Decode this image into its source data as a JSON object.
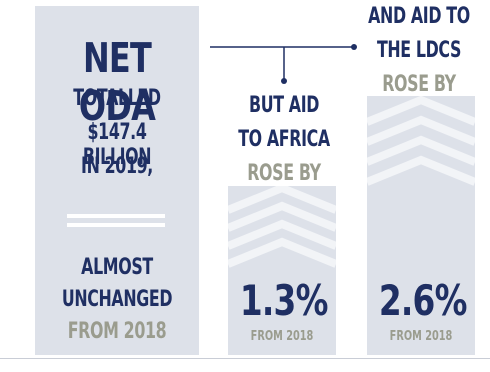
{
  "left_panel": {
    "title": "NET ODA",
    "line_1": "TOTALLED",
    "line_2": "$147.4 BILLION",
    "line_3": "IN 2019,",
    "line_4": "ALMOST",
    "line_5": "UNCHANGED",
    "line_6": "FROM 2018"
  },
  "africa": {
    "line_1": "BUT AID",
    "line_2": "TO AFRICA",
    "line_3": "ROSE BY",
    "value": "1.3%",
    "note": "FROM 2018"
  },
  "ldcs": {
    "line_1": "AND AID TO",
    "line_2": "THE LDCS",
    "line_3": "ROSE BY",
    "value": "2.6%",
    "note": "FROM 2018"
  },
  "colors": {
    "navy": "#1f2f63",
    "grey_text": "#9a9c8e",
    "panel": "#dde1e9"
  }
}
